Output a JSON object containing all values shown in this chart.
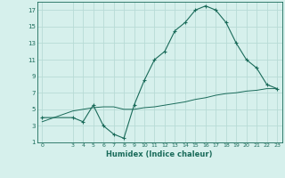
{
  "title": "",
  "xlabel": "Humidex (Indice chaleur)",
  "ylabel": "",
  "background_color": "#d6f0ec",
  "line_color": "#1a6b5a",
  "grid_color": "#b8dbd6",
  "line1_x": [
    0,
    3,
    4,
    5,
    6,
    7,
    8,
    9,
    10,
    11,
    12,
    13,
    14,
    15,
    16,
    17,
    18,
    19,
    20,
    21,
    22,
    23
  ],
  "line1_y": [
    4.0,
    4.0,
    3.5,
    5.5,
    3.0,
    2.0,
    1.5,
    5.5,
    8.5,
    11.0,
    12.0,
    14.5,
    15.5,
    17.0,
    17.5,
    17.0,
    15.5,
    13.0,
    11.0,
    10.0,
    8.0,
    7.5
  ],
  "line2_x": [
    0,
    3,
    4,
    5,
    6,
    7,
    8,
    9,
    10,
    11,
    12,
    13,
    14,
    15,
    16,
    17,
    18,
    19,
    20,
    21,
    22,
    23
  ],
  "line2_y": [
    3.5,
    4.8,
    5.0,
    5.2,
    5.3,
    5.3,
    5.0,
    5.0,
    5.2,
    5.3,
    5.5,
    5.7,
    5.9,
    6.2,
    6.4,
    6.7,
    6.9,
    7.0,
    7.2,
    7.3,
    7.5,
    7.5
  ],
  "xlim": [
    -0.5,
    23.5
  ],
  "ylim": [
    1,
    18
  ],
  "xticks": [
    0,
    3,
    4,
    5,
    6,
    7,
    8,
    9,
    10,
    11,
    12,
    13,
    14,
    15,
    16,
    17,
    18,
    19,
    20,
    21,
    22,
    23
  ],
  "yticks": [
    1,
    3,
    5,
    7,
    9,
    11,
    13,
    15,
    17
  ]
}
